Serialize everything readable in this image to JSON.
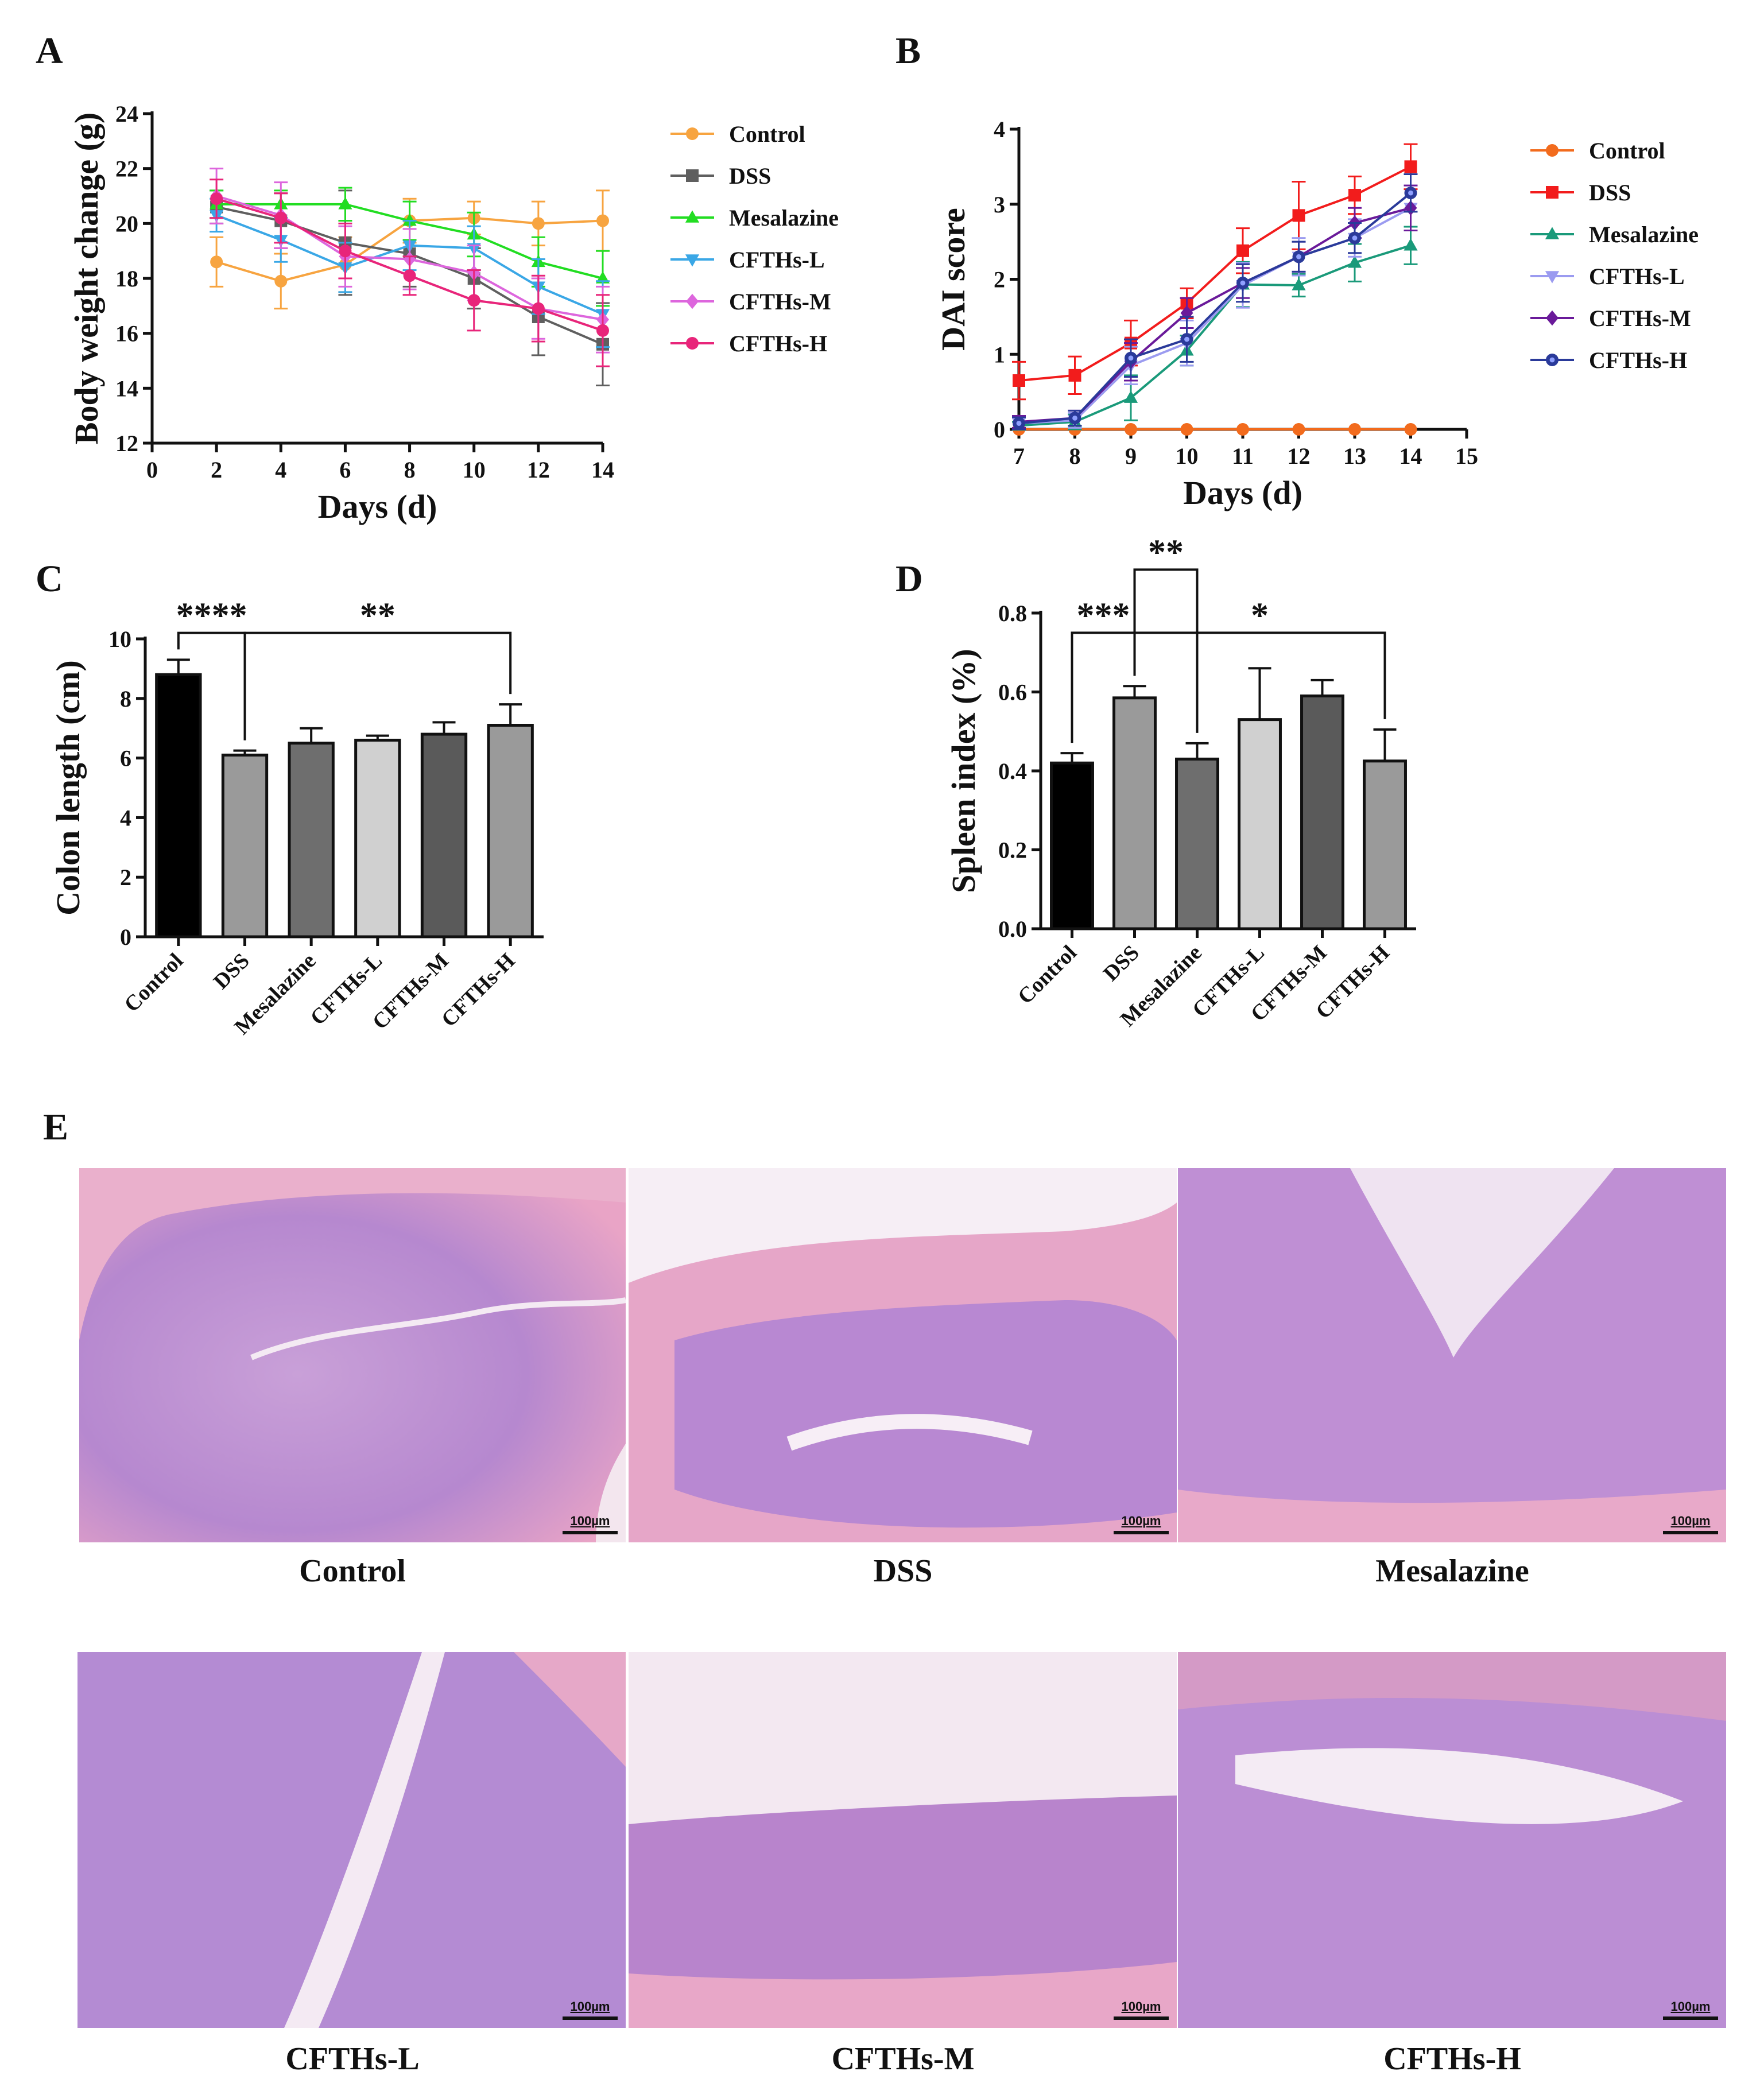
{
  "colors": {
    "control_a": "#f7a440",
    "dss_a": "#5f5f5f",
    "mesalazine_a": "#22dd22",
    "cfths_l_a": "#3aa7e6",
    "cfths_m_a": "#dd66dd",
    "cfths_h_a": "#e8257a",
    "control_b": "#f26b1d",
    "dss_b": "#f21c1c",
    "mesalazine_b": "#1a9a7a",
    "cfths_l_b": "#9b9bf0",
    "cfths_m_b": "#6a1a9a",
    "cfths_h_b": "#2a3a9a",
    "he_stain": "#d69ad0"
  },
  "panels": {
    "a": "A",
    "b": "B",
    "c": "C",
    "d": "D",
    "e": "E"
  },
  "chart_data": [
    {
      "id": "A",
      "type": "line",
      "title": "",
      "xlabel": "Days (d)",
      "ylabel": "Body weight change (g)",
      "xlim": [
        0,
        14
      ],
      "ylim": [
        12,
        24
      ],
      "xticks": [
        "0",
        "2",
        "4",
        "6",
        "8",
        "10",
        "12",
        "14"
      ],
      "yticks": [
        "12",
        "14",
        "16",
        "18",
        "20",
        "22",
        "24"
      ],
      "x": [
        2,
        4,
        6,
        8,
        10,
        12,
        14
      ],
      "legend": "right",
      "series": [
        {
          "name": "Control",
          "color": "#f7a440",
          "marker": "circle",
          "values": [
            18.6,
            17.9,
            18.5,
            20.1,
            20.2,
            20.0,
            20.1
          ],
          "err": [
            0.9,
            1.0,
            1.0,
            0.8,
            0.6,
            0.8,
            1.1
          ]
        },
        {
          "name": "DSS",
          "color": "#5f5f5f",
          "marker": "square",
          "values": [
            20.6,
            20.1,
            19.3,
            18.9,
            18.0,
            16.6,
            15.6
          ],
          "err": [
            0.6,
            1.0,
            1.9,
            1.2,
            1.1,
            1.4,
            1.5
          ]
        },
        {
          "name": "Mesalazine",
          "color": "#22dd22",
          "marker": "triangle",
          "values": [
            20.7,
            20.7,
            20.7,
            20.1,
            19.6,
            18.6,
            18.0
          ],
          "err": [
            0.5,
            0.5,
            0.6,
            0.7,
            0.8,
            0.9,
            1.0
          ]
        },
        {
          "name": "CFTHs-L",
          "color": "#3aa7e6",
          "marker": "triangle-down",
          "values": [
            20.3,
            19.4,
            18.4,
            19.2,
            19.1,
            17.7,
            16.7
          ],
          "err": [
            0.6,
            0.8,
            0.9,
            0.9,
            0.8,
            1.0,
            1.2
          ]
        },
        {
          "name": "CFTHs-M",
          "color": "#dd66dd",
          "marker": "diamond",
          "values": [
            21.0,
            20.3,
            18.8,
            18.7,
            18.2,
            16.9,
            16.5
          ],
          "err": [
            1.0,
            1.2,
            1.1,
            1.1,
            1.0,
            1.1,
            1.2
          ]
        },
        {
          "name": "CFTHs-H",
          "color": "#e8257a",
          "marker": "circle",
          "values": [
            20.9,
            20.2,
            19.0,
            18.1,
            17.2,
            16.9,
            16.1
          ],
          "err": [
            0.7,
            0.9,
            1.0,
            0.7,
            1.1,
            1.2,
            1.3
          ]
        }
      ]
    },
    {
      "id": "B",
      "type": "line",
      "title": "",
      "xlabel": "Days (d)",
      "ylabel": "DAI score",
      "xlim": [
        7,
        15
      ],
      "ylim": [
        0,
        4
      ],
      "xticks": [
        "7",
        "8",
        "9",
        "10",
        "11",
        "12",
        "13",
        "14",
        "15"
      ],
      "yticks": [
        "0",
        "1",
        "2",
        "3",
        "4"
      ],
      "x": [
        7,
        8,
        9,
        10,
        11,
        12,
        13,
        14
      ],
      "legend": "right",
      "series": [
        {
          "name": "Control",
          "color": "#f26b1d",
          "marker": "circle",
          "values": [
            0,
            0,
            0,
            0,
            0,
            0,
            0,
            0
          ],
          "err": [
            0,
            0,
            0,
            0,
            0,
            0,
            0,
            0
          ]
        },
        {
          "name": "DSS",
          "color": "#f21c1c",
          "marker": "square",
          "values": [
            0.65,
            0.72,
            1.15,
            1.68,
            2.38,
            2.85,
            3.12,
            3.5
          ],
          "err": [
            0.25,
            0.25,
            0.3,
            0.2,
            0.3,
            0.45,
            0.25,
            0.3
          ]
        },
        {
          "name": "Mesalazine",
          "color": "#1a9a7a",
          "marker": "triangle",
          "values": [
            0.05,
            0.1,
            0.42,
            1.05,
            1.93,
            1.92,
            2.22,
            2.45
          ],
          "err": [
            0.05,
            0.1,
            0.3,
            0.2,
            0.3,
            0.15,
            0.25,
            0.25
          ]
        },
        {
          "name": "CFTHs-L",
          "color": "#9b9bf0",
          "marker": "triangle-down",
          "values": [
            0.08,
            0.12,
            0.85,
            1.15,
            1.92,
            2.3,
            2.55,
            2.95
          ],
          "err": [
            0.08,
            0.1,
            0.25,
            0.3,
            0.3,
            0.25,
            0.25,
            0.3
          ]
        },
        {
          "name": "CFTHs-M",
          "color": "#6a1a9a",
          "marker": "diamond",
          "values": [
            0.1,
            0.15,
            0.9,
            1.55,
            1.95,
            2.3,
            2.75,
            2.95
          ],
          "err": [
            0.08,
            0.1,
            0.25,
            0.2,
            0.2,
            0.2,
            0.2,
            0.3
          ]
        },
        {
          "name": "CFTHs-H",
          "color": "#2a3a9a",
          "marker": "circle-dot",
          "values": [
            0.08,
            0.15,
            0.95,
            1.2,
            1.95,
            2.3,
            2.55,
            3.15
          ],
          "err": [
            0.08,
            0.1,
            0.25,
            0.3,
            0.25,
            0.2,
            0.2,
            0.25
          ]
        }
      ]
    },
    {
      "id": "C",
      "type": "bar",
      "title": "",
      "xlabel": "",
      "ylabel": "Colon length (cm)",
      "ylim": [
        0,
        10
      ],
      "yticks": [
        "0",
        "2",
        "4",
        "6",
        "8",
        "10"
      ],
      "categories": [
        "Control",
        "DSS",
        "Mesalazine",
        "CFTHs-L",
        "CFTHs-M",
        "CFTHs-H"
      ],
      "values": [
        8.8,
        6.1,
        6.5,
        6.6,
        6.8,
        7.1
      ],
      "err": [
        0.5,
        0.15,
        0.5,
        0.15,
        0.4,
        0.7
      ],
      "bar_colors": [
        "#000000",
        "#9a9a9a",
        "#6e6e6e",
        "#d0d0d0",
        "#5a5a5a",
        "#9a9a9a"
      ],
      "annotations": [
        {
          "label": "****",
          "from": 0,
          "to": 1,
          "level": 10.2
        },
        {
          "label": "**",
          "from": 1,
          "to": 5,
          "level": 10.2
        }
      ]
    },
    {
      "id": "D",
      "type": "bar",
      "title": "",
      "xlabel": "",
      "ylabel": "Spleen index (%)",
      "ylim": [
        0,
        0.8
      ],
      "yticks": [
        "0.0",
        "0.2",
        "0.4",
        "0.6",
        "0.8"
      ],
      "categories": [
        "Control",
        "DSS",
        "Mesalazine",
        "CFTHs-L",
        "CFTHs-M",
        "CFTHs-H"
      ],
      "values": [
        0.42,
        0.585,
        0.43,
        0.53,
        0.59,
        0.425
      ],
      "err": [
        0.025,
        0.03,
        0.04,
        0.13,
        0.04,
        0.08
      ],
      "bar_colors": [
        "#000000",
        "#9a9a9a",
        "#6e6e6e",
        "#d0d0d0",
        "#5a5a5a",
        "#9a9a9a"
      ],
      "annotations": [
        {
          "label": "***",
          "from": 0,
          "to": 1,
          "level": 0.75
        },
        {
          "label": "**",
          "from": 1,
          "to": 2,
          "level": 0.91
        },
        {
          "label": "*",
          "from": 1,
          "to": 5,
          "level": 0.75
        }
      ]
    }
  ],
  "histology": {
    "scale": "100µm",
    "images": [
      {
        "caption": "Control"
      },
      {
        "caption": "DSS"
      },
      {
        "caption": "Mesalazine"
      },
      {
        "caption": "CFTHs-L"
      },
      {
        "caption": "CFTHs-M"
      },
      {
        "caption": "CFTHs-H"
      }
    ]
  }
}
